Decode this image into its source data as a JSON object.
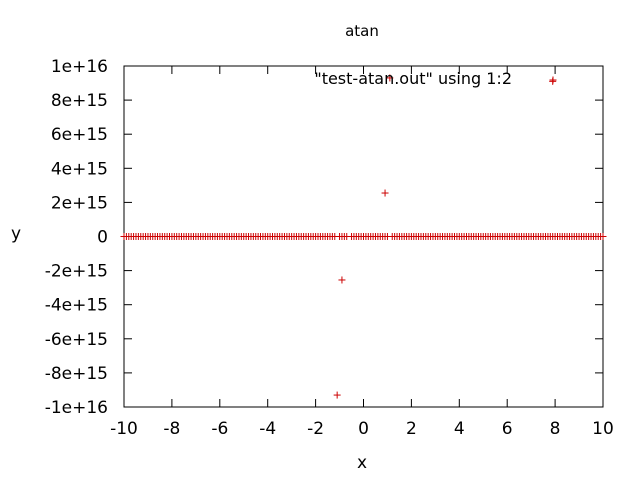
{
  "chart_data": {
    "type": "scatter",
    "title": "atan",
    "xlabel": "x",
    "ylabel": "y",
    "xlim": [
      -10,
      10
    ],
    "ylim": [
      -1e+16,
      1e+16
    ],
    "grid": false,
    "legend_position": "top-right",
    "x_ticks": [
      -10,
      -8,
      -6,
      -4,
      -2,
      0,
      2,
      4,
      6,
      8,
      10
    ],
    "x_tick_labels": [
      "-10",
      "-8",
      "-6",
      "-4",
      "-2",
      "0",
      "2",
      "4",
      "6",
      "8",
      "10"
    ],
    "y_ticks": [
      1e+16,
      8000000000000000.0,
      6000000000000000.0,
      4000000000000000.0,
      2000000000000000.0,
      0,
      -2000000000000000.0,
      -4000000000000000.0,
      -6000000000000000.0,
      -8000000000000000.0,
      -1e+16
    ],
    "y_tick_labels": [
      "1e+16",
      "8e+15",
      "6e+15",
      "4e+15",
      "2e+15",
      "0",
      "-2e+15",
      "-4e+15",
      "-6e+15",
      "-8e+15",
      "-1e+16"
    ],
    "series": [
      {
        "name": "\"test-atan.out\" using 1:2",
        "color": "#cc0000",
        "marker": "plus",
        "baseline": {
          "x_start": -10,
          "x_end": 10,
          "x_step": 0.1,
          "y": 0,
          "gaps": [
            [
              -1.15,
              -1.05
            ],
            [
              -0.65,
              -0.55
            ],
            [
              1.05,
              1.15
            ]
          ]
        },
        "points": [
          {
            "x": -1.1,
            "y": -9300000000000000.0
          },
          {
            "x": -0.9,
            "y": -2550000000000000.0
          },
          {
            "x": 0.9,
            "y": 2550000000000000.0
          },
          {
            "x": 1.1,
            "y": 9300000000000000.0
          },
          {
            "x": 7.9,
            "y": 9100000000000000.0
          }
        ]
      }
    ]
  }
}
